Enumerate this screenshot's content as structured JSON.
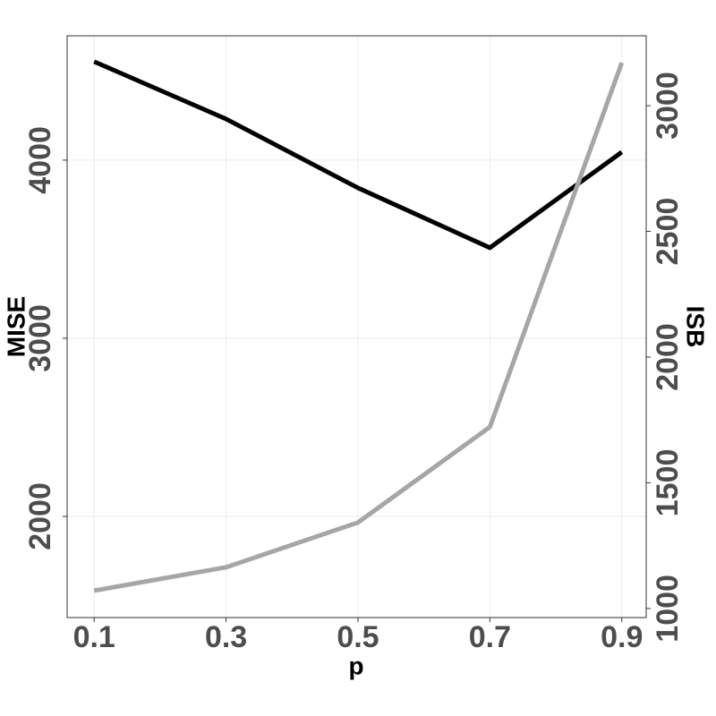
{
  "chart_data": {
    "type": "line",
    "x_label": "p",
    "y_label": "MISE",
    "y2_label": "ISB",
    "x": [
      0.1,
      0.3,
      0.5,
      0.7,
      0.9
    ],
    "series": [
      {
        "name": "MISE",
        "color": "#000000",
        "values": [
          4553,
          4231,
          3844,
          3508,
          4045
        ]
      },
      {
        "name": "ISB",
        "color": "#a6a6a6",
        "axis": "y2",
        "values": [
          1071,
          1164,
          1342,
          1722,
          3171
        ]
      }
    ],
    "xlim": [
      0.059,
      0.937
    ],
    "xticks": [
      0.1,
      0.3,
      0.5,
      0.7,
      0.9
    ],
    "ylim": [
      1432,
      4698
    ],
    "yticks": [
      2000,
      3000,
      4000
    ],
    "y2lim": [
      964,
      3278
    ],
    "y2ticks": [
      1000,
      1500,
      2000,
      2500,
      3000
    ],
    "grid": true
  }
}
